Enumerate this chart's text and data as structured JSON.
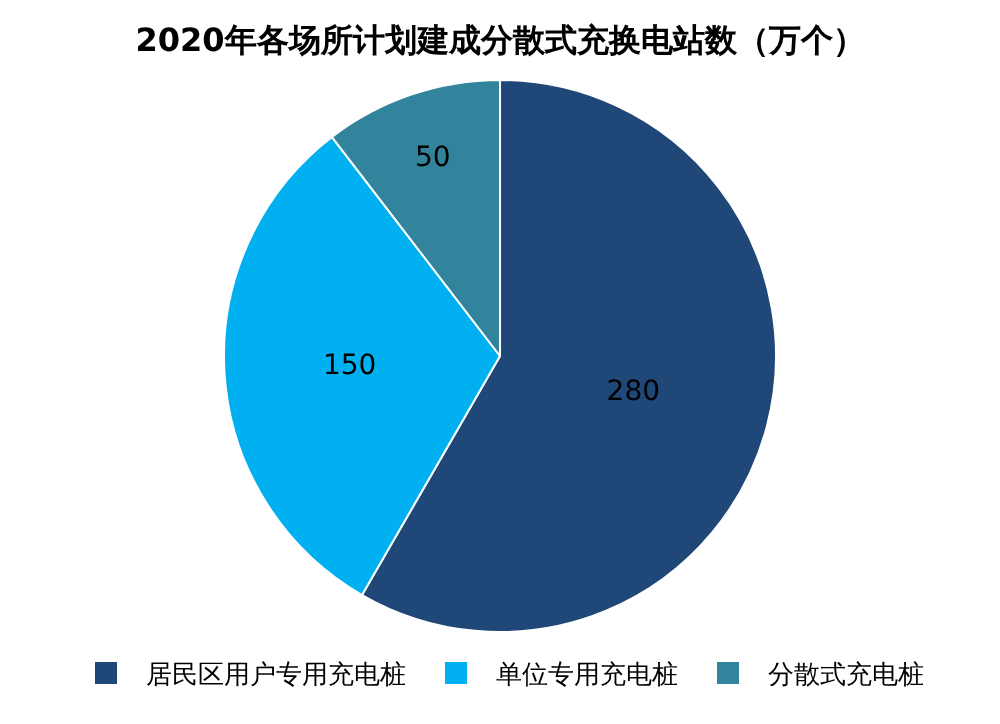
{
  "chart_data": {
    "type": "pie",
    "title": "2020年各场所计划建成分散式充换电站数（万个）",
    "categories": [
      "居民区用户专用充电桩",
      "单位专用充电桩",
      "分散式充电桩"
    ],
    "values": [
      280,
      150,
      50
    ],
    "colors": [
      "#1f4778",
      "#00b0f0",
      "#31849b"
    ],
    "data_labels": true,
    "legend": "bottom"
  }
}
